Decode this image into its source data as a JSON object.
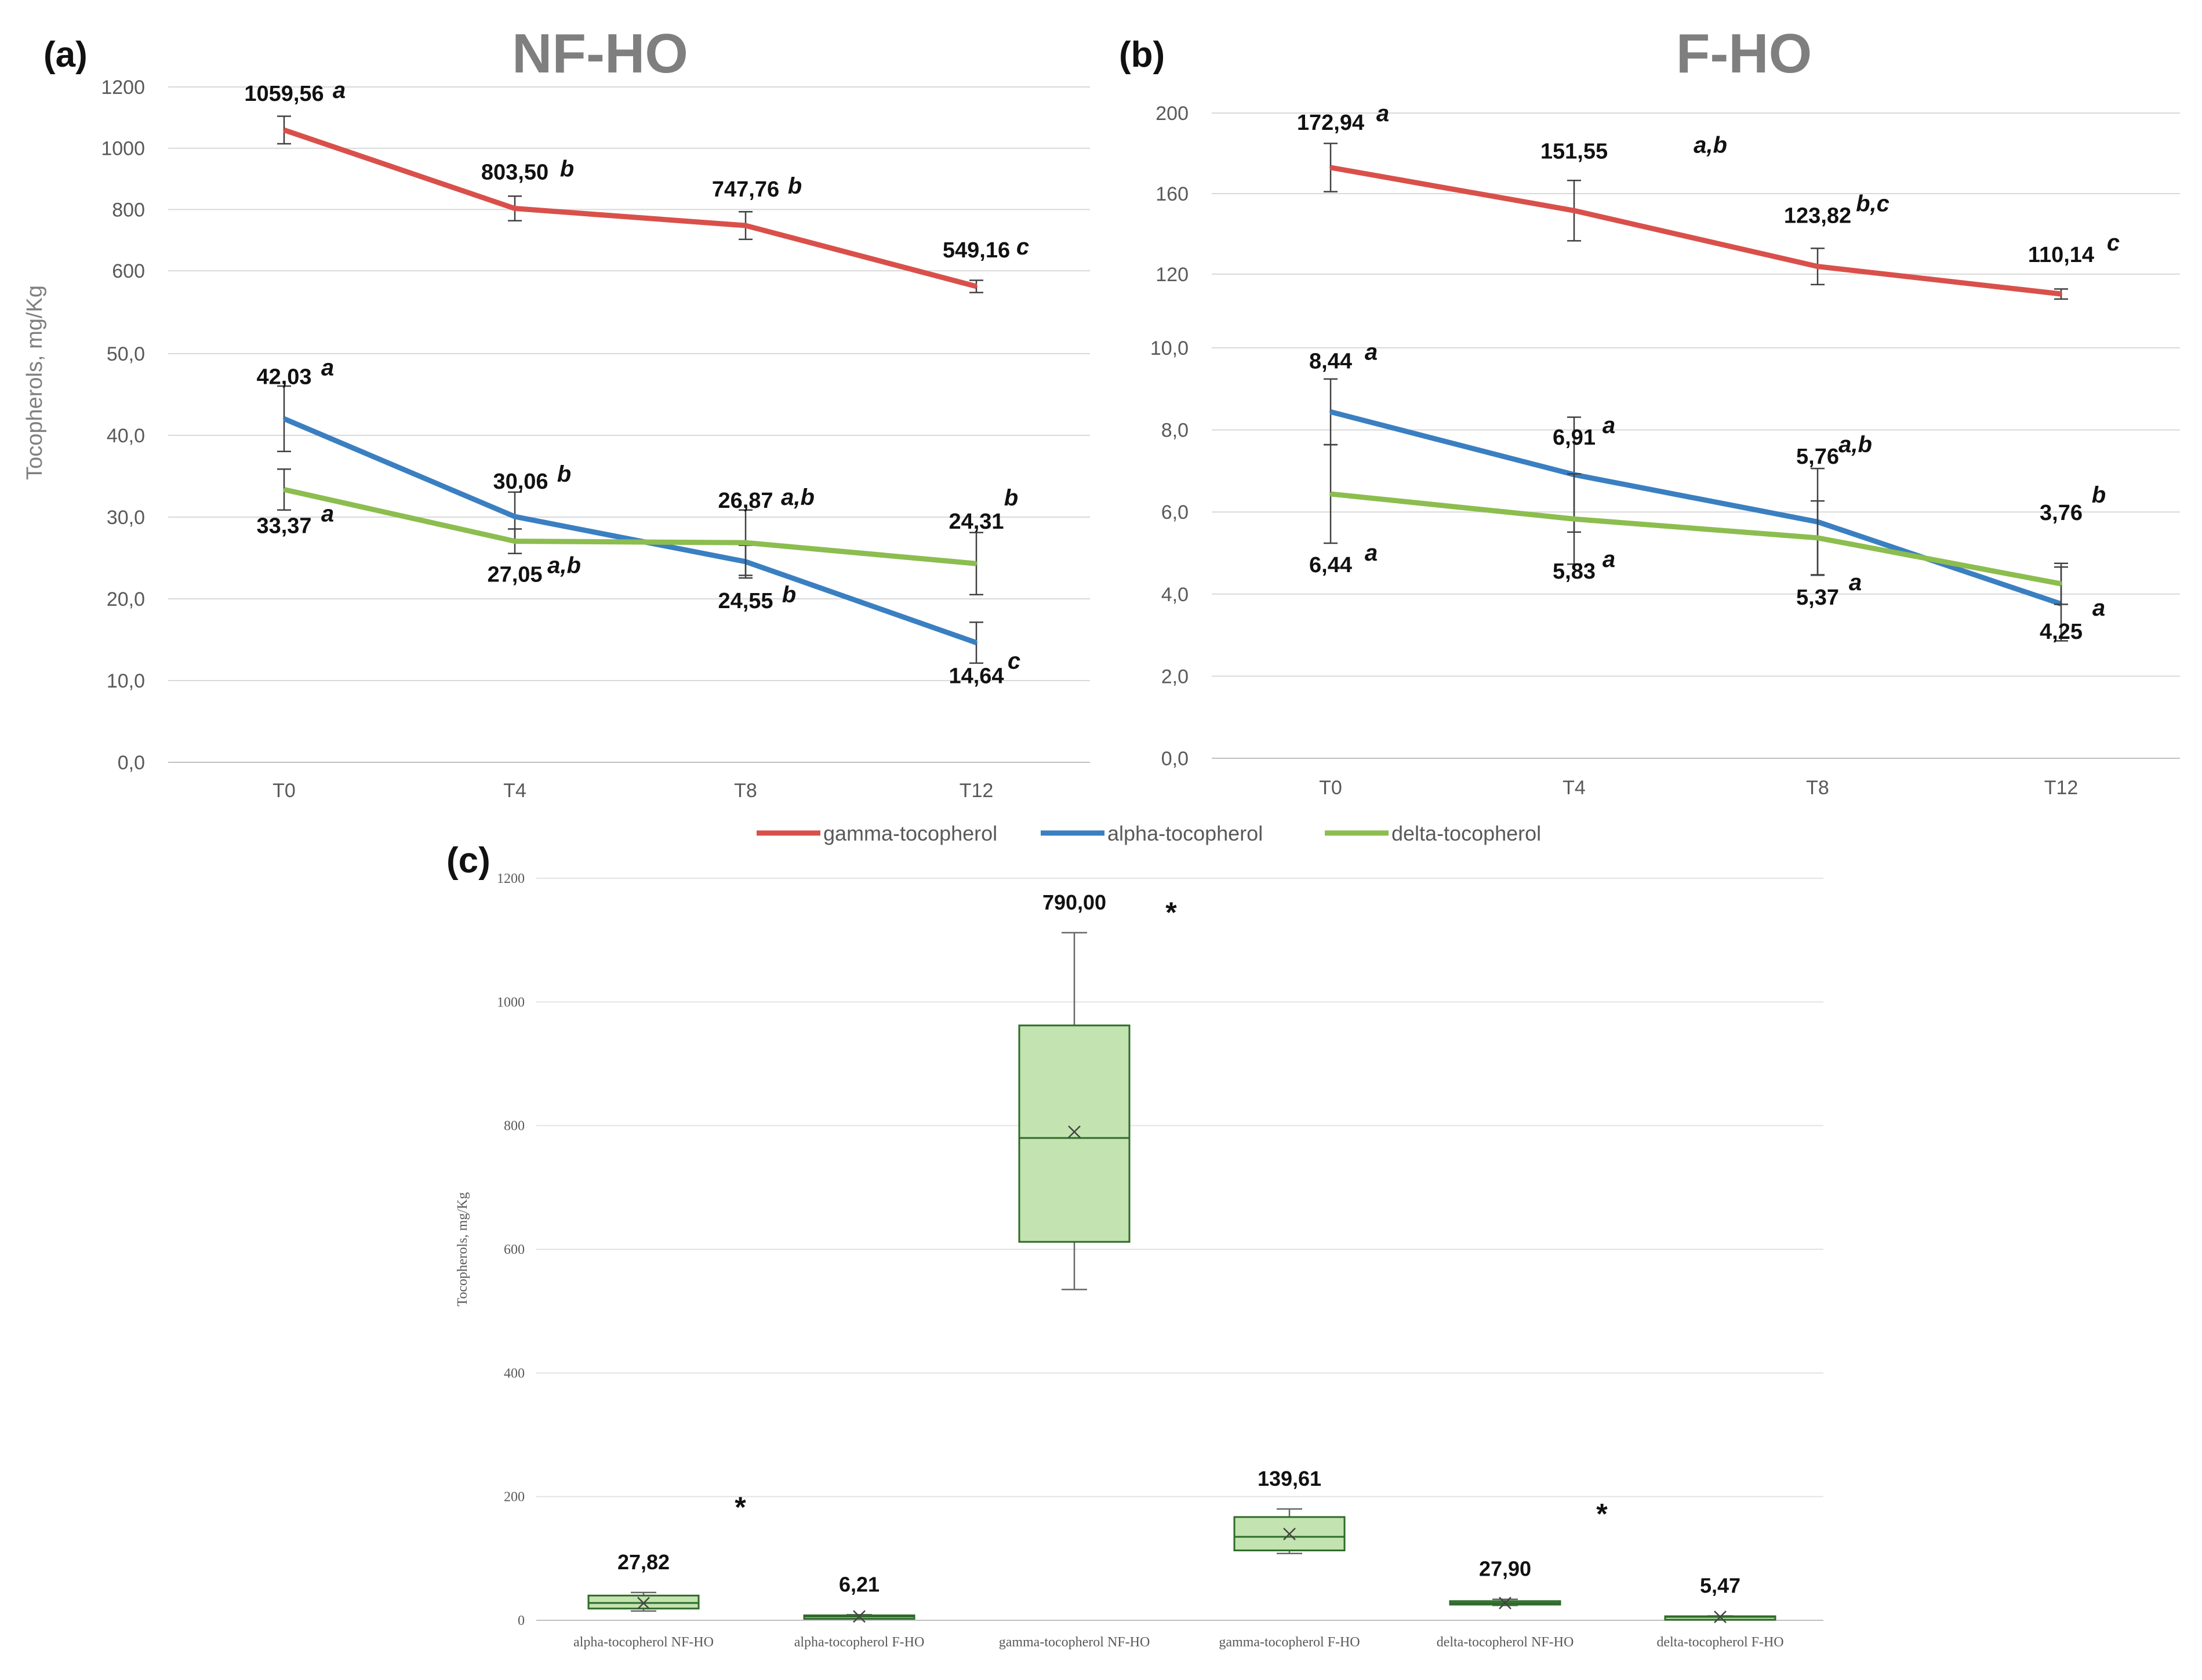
{
  "chart_data": [
    {
      "id": "a",
      "type": "line",
      "panel_label": "(a)",
      "title": "NF-HO",
      "ylabel": "Tocopherols, mg/Kg",
      "categories": [
        "T0",
        "T4",
        "T8",
        "T12"
      ],
      "broken_axis": true,
      "upper_axis": {
        "ylim": [
          500,
          1200
        ],
        "ticks": [
          "600",
          "800",
          "1000",
          "1200"
        ]
      },
      "lower_axis": {
        "ylim": [
          0,
          50
        ],
        "ticks": [
          "0,0",
          "10,0",
          "20,0",
          "30,0",
          "40,0",
          "50,0"
        ]
      },
      "series": [
        {
          "name": "gamma-tocopherol",
          "color": "#d9504b",
          "axis": "upper",
          "values": [
            1059.56,
            803.5,
            747.76,
            549.16
          ],
          "errors": [
            45,
            40,
            45,
            20
          ],
          "labels": [
            "1059,56",
            "803,50",
            "747,76",
            "549,16"
          ],
          "letters": [
            "a",
            "b",
            "b",
            "c"
          ]
        },
        {
          "name": "alpha-tocopherol",
          "color": "#3a7fc1",
          "axis": "lower",
          "values": [
            42.03,
            30.06,
            24.55,
            14.64
          ],
          "errors": [
            4,
            3,
            2,
            2.5
          ],
          "labels": [
            "42,03",
            "30,06",
            "24,55",
            "14,64"
          ],
          "letters": [
            "a",
            "b",
            "b",
            "c"
          ]
        },
        {
          "name": "delta-tocopherol",
          "color": "#8cbd4f",
          "axis": "lower",
          "values": [
            33.37,
            27.05,
            26.87,
            24.31
          ],
          "errors": [
            2.5,
            1.5,
            4,
            3.8
          ],
          "labels": [
            "33,37",
            "27,05",
            "26,87",
            "24,31"
          ],
          "letters": [
            "a",
            "a,b",
            "a,b",
            "b"
          ]
        }
      ]
    },
    {
      "id": "b",
      "type": "line",
      "panel_label": "(b)",
      "title": "F-HO",
      "categories": [
        "T0",
        "T4",
        "T8",
        "T12"
      ],
      "broken_axis": true,
      "upper_axis": {
        "ylim": [
          105,
          200
        ],
        "ticks": [
          "120",
          "160",
          "200"
        ]
      },
      "lower_axis": {
        "ylim": [
          0,
          10
        ],
        "ticks": [
          "0,0",
          "2,0",
          "4,0",
          "6,0",
          "8,0",
          "10,0"
        ]
      },
      "series": [
        {
          "name": "gamma-tocopherol",
          "color": "#d9504b",
          "axis": "upper",
          "values": [
            172.94,
            151.55,
            123.82,
            110.14
          ],
          "errors": [
            12,
            15,
            9,
            2.5
          ],
          "labels": [
            "172,94",
            "151,55",
            "123,82",
            "110,14"
          ],
          "letters": [
            "a",
            "a,b",
            "b,c",
            "c"
          ]
        },
        {
          "name": "alpha-tocopherol",
          "color": "#3a7fc1",
          "axis": "lower",
          "values": [
            8.44,
            6.91,
            5.76,
            3.76
          ],
          "errors": [
            0.8,
            1.4,
            1.3,
            0.9
          ],
          "labels": [
            "8,44",
            "6,91",
            "5,76",
            "3,76"
          ],
          "letters": [
            "a",
            "a",
            "a,b",
            "b"
          ]
        },
        {
          "name": "delta-tocopherol",
          "color": "#8cbd4f",
          "axis": "lower",
          "values": [
            6.44,
            5.83,
            5.37,
            4.25
          ],
          "errors": [
            1.2,
            1.1,
            0.9,
            0.5
          ],
          "labels": [
            "6,44",
            "5,83",
            "5,37",
            "4,25"
          ],
          "letters": [
            "a",
            "a",
            "a",
            "a"
          ]
        }
      ]
    },
    {
      "id": "c",
      "type": "box",
      "panel_label": "(c)",
      "ylabel": "Tocopherols, mg/Kg",
      "ylim": [
        0,
        1200
      ],
      "yticks": [
        "0",
        "200",
        "400",
        "600",
        "800",
        "1000",
        "1200"
      ],
      "box_color": "#c3e3b0",
      "box_stroke": "#2e6b2a",
      "boxes": [
        {
          "category": "alpha-tocopherol NF-HO",
          "min": 15,
          "q1": 19,
          "median": 28,
          "q3": 40,
          "max": 45,
          "mean": 27.82,
          "label": "27,82",
          "star": true
        },
        {
          "category": "alpha-tocopherol F-HO",
          "min": 4,
          "q1": 5,
          "median": 6,
          "q3": 8,
          "max": 9,
          "mean": 6.21,
          "label": "6,21",
          "star": false
        },
        {
          "category": "gamma-tocopherol NF-HO",
          "min": 535,
          "q1": 612,
          "median": 780,
          "q3": 962,
          "max": 1112,
          "mean": 790.0,
          "label": "790,00",
          "star": true
        },
        {
          "category": "gamma-tocopherol F-HO",
          "min": 108,
          "q1": 113,
          "median": 135,
          "q3": 167,
          "max": 180,
          "mean": 139.61,
          "label": "139,61",
          "star": false
        },
        {
          "category": "delta-tocopherol NF-HO",
          "min": 24,
          "q1": 26,
          "median": 28,
          "q3": 31,
          "max": 34,
          "mean": 27.9,
          "label": "27,90",
          "star": true
        },
        {
          "category": "delta-tocopherol F-HO",
          "min": 4,
          "q1": 4.5,
          "median": 5.5,
          "q3": 6.5,
          "max": 7,
          "mean": 5.47,
          "label": "5,47",
          "star": false
        }
      ]
    }
  ],
  "legend": [
    {
      "name": "gamma-tocopherol",
      "color": "#d9504b"
    },
    {
      "name": "alpha-tocopherol",
      "color": "#3a7fc1"
    },
    {
      "name": "delta-tocopherol",
      "color": "#8cbd4f"
    }
  ]
}
